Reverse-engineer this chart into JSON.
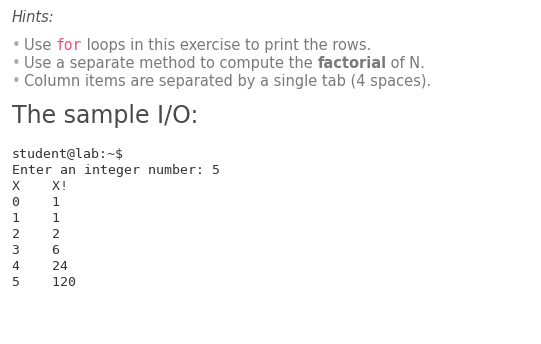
{
  "bg_color": "#ffffff",
  "hints_label": "Hints:",
  "sample_io_title": "The sample I/O:",
  "sample_io_title_color": "#4a4a4a",
  "bullet_color": "#7a7a7a",
  "hints_color": "#555555",
  "code_color": "#333333",
  "for_color": "#e8507a",
  "bullet_texts": [
    [
      {
        "t": "Use ",
        "c": "#7a7a7a",
        "bold": false,
        "mono": false
      },
      {
        "t": "for",
        "c": "#e8507a",
        "bold": false,
        "mono": true
      },
      {
        "t": " loops in this exercise to print the rows.",
        "c": "#7a7a7a",
        "bold": false,
        "mono": false
      }
    ],
    [
      {
        "t": "Use a separate method to compute the ",
        "c": "#7a7a7a",
        "bold": false,
        "mono": false
      },
      {
        "t": "factorial",
        "c": "#7a7a7a",
        "bold": true,
        "mono": false
      },
      {
        "t": " of N.",
        "c": "#7a7a7a",
        "bold": false,
        "mono": false
      }
    ],
    [
      {
        "t": "Column items are separated by a single tab (4 spaces).",
        "c": "#7a7a7a",
        "bold": false,
        "mono": false
      }
    ]
  ],
  "code_lines": [
    "student@lab:~$",
    "Enter an integer number: 5",
    "X    X!",
    "0    1",
    "1    1",
    "2    2",
    "3    6",
    "4    24",
    "5    120"
  ],
  "font_size_hints": 10.5,
  "font_size_bullet": 10.5,
  "font_size_title": 17,
  "font_size_code": 9.5,
  "bullet_symbol": "•"
}
